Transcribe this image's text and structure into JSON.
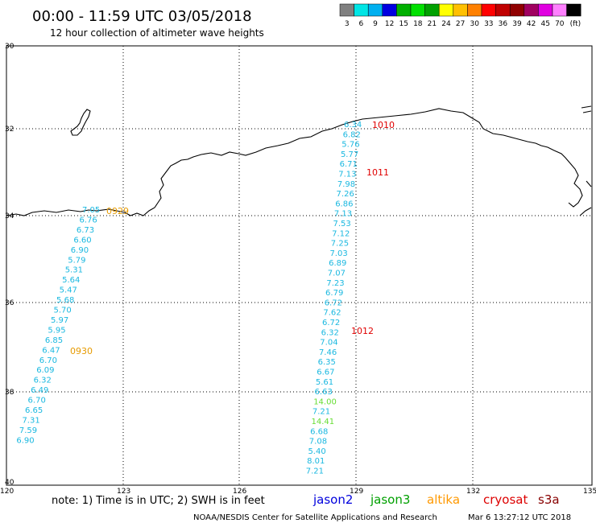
{
  "header": {
    "title": "00:00 - 11:59 UTC 03/05/2018",
    "subtitle": "12 hour collection of altimeter wave heights"
  },
  "colorbar": {
    "colors": [
      "#808080",
      "#00e5e5",
      "#00b0f0",
      "#0000e0",
      "#00b000",
      "#00e000",
      "#00a000",
      "#ffff00",
      "#ffc000",
      "#ff8000",
      "#ff0000",
      "#c00000",
      "#900000",
      "#a00060",
      "#e000e0",
      "#ff80ff",
      "#000000"
    ],
    "labels": [
      "3",
      "6",
      "9",
      "12",
      "15",
      "18",
      "21",
      "24",
      "27",
      "30",
      "33",
      "36",
      "39",
      "42",
      "45",
      "70",
      "(ft)"
    ]
  },
  "axes": {
    "lat_labels": [
      "30",
      "32",
      "34",
      "36",
      "38",
      "40"
    ],
    "lon_labels": [
      "120",
      "123",
      "126",
      "129",
      "132",
      "135"
    ]
  },
  "tracks": {
    "cyan_color": "#1ab8e0",
    "green_color": "#66dd33",
    "track1": {
      "values": [
        "7.05",
        "6.76",
        "6.73",
        "6.60",
        "6.90",
        "5.79",
        "5.31",
        "5.64",
        "5.47",
        "5.68",
        "5.70",
        "5.97",
        "5.95",
        "6.85",
        "6.47",
        "6.70",
        "6.09",
        "6.32",
        "6.49",
        "6.70",
        "6.65",
        "7.31",
        "7.59",
        "6.90"
      ]
    },
    "track2": {
      "values": [
        "6.34",
        "6.82",
        "5.76",
        "5.77",
        "6.71",
        "7.13",
        "7.98",
        "7.26",
        "6.86",
        "7.13",
        "7.53",
        "7.12",
        "7.25",
        "7.03",
        "6.89",
        "7.07",
        "7.23",
        "6.79",
        "6.72",
        "7.62",
        "6.72",
        "6.32",
        "7.04",
        "7.46",
        "6.35",
        "6.67",
        "5.61",
        "6.63",
        "14.00",
        "7.21",
        "14.41",
        "6.68",
        "7.08",
        "5.40",
        "8.01",
        "7.21"
      ],
      "green_values": [
        "14.00",
        "14.41"
      ]
    }
  },
  "time_labels": [
    {
      "text": "0929",
      "color": "#e69a00"
    },
    {
      "text": "0930",
      "color": "#e69a00"
    },
    {
      "text": "1010",
      "color": "#e00000"
    },
    {
      "text": "1011",
      "color": "#e00000"
    },
    {
      "text": "1012",
      "color": "#e00000"
    }
  ],
  "footer": {
    "note": "note: 1) Time is in UTC; 2) SWH is in feet",
    "legend": [
      {
        "text": "jason2",
        "color": "#0000dd"
      },
      {
        "text": "jason3",
        "color": "#00a000"
      },
      {
        "text": "altika",
        "color": "#ff9900"
      },
      {
        "text": "cryosat",
        "color": "#dd0000"
      },
      {
        "text": "s3a",
        "color": "#880000"
      }
    ],
    "credit": "NOAA/NESDIS Center for Satellite Applications and Research",
    "timestamp": "Mar  6 13:27:12 UTC 2018"
  }
}
